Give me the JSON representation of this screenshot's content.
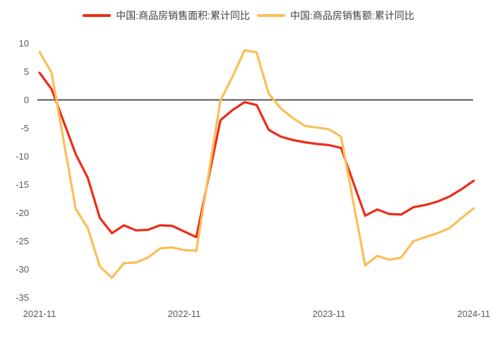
{
  "chart_data": {
    "type": "line",
    "title": "",
    "xlabel": "",
    "ylabel": "",
    "ylim": [
      -35,
      10
    ],
    "y_tick_step": 5,
    "grid": false,
    "zero_line": true,
    "legend_position": "top-center",
    "x": [
      "2021-11",
      "2021-12",
      "2022-02",
      "2022-03",
      "2022-04",
      "2022-05",
      "2022-06",
      "2022-07",
      "2022-08",
      "2022-09",
      "2022-10",
      "2022-11",
      "2022-12",
      "2023-02",
      "2023-03",
      "2023-04",
      "2023-05",
      "2023-06",
      "2023-07",
      "2023-08",
      "2023-09",
      "2023-10",
      "2023-11",
      "2023-12",
      "2024-02",
      "2024-03",
      "2024-04",
      "2024-05",
      "2024-06",
      "2024-07",
      "2024-08",
      "2024-09",
      "2024-10",
      "2024-11"
    ],
    "series": [
      {
        "name": "中国:商品房销售面积:累计同比",
        "color": "#ee2b17",
        "values": [
          4.8,
          1.9,
          -9.6,
          -13.8,
          -20.9,
          -23.6,
          -22.2,
          -23.1,
          -23.0,
          -22.2,
          -22.3,
          -23.3,
          -24.3,
          -3.6,
          -1.8,
          -0.4,
          -0.9,
          -5.3,
          -6.5,
          -7.1,
          -7.5,
          -7.8,
          -8.0,
          -8.5,
          -20.5,
          -19.4,
          -20.2,
          -20.3,
          -19.0,
          -18.6,
          -18.0,
          -17.1,
          -15.8,
          -14.3
        ]
      },
      {
        "name": "中国:商品房销售额:累计同比",
        "color": "#fbbe55",
        "values": [
          8.5,
          4.8,
          -19.3,
          -22.7,
          -29.5,
          -31.5,
          -28.9,
          -28.8,
          -27.9,
          -26.3,
          -26.1,
          -26.6,
          -26.7,
          -0.1,
          4.1,
          8.8,
          8.4,
          1.1,
          -1.5,
          -3.2,
          -4.6,
          -4.9,
          -5.2,
          -6.5,
          -29.3,
          -27.6,
          -28.3,
          -27.9,
          -25.0,
          -24.3,
          -23.6,
          -22.7,
          -20.9,
          -19.2
        ]
      }
    ],
    "y_ticks": [
      10,
      5,
      0,
      -5,
      -10,
      -15,
      -20,
      -25,
      -30,
      -35
    ],
    "x_ticks": [
      "2021-11",
      "2022-11",
      "2023-11",
      "2024-11"
    ],
    "colors": {
      "axis_label": "#595959",
      "legend_text": "#404040",
      "zero_line": "#404040",
      "background": "#ffffff"
    }
  }
}
